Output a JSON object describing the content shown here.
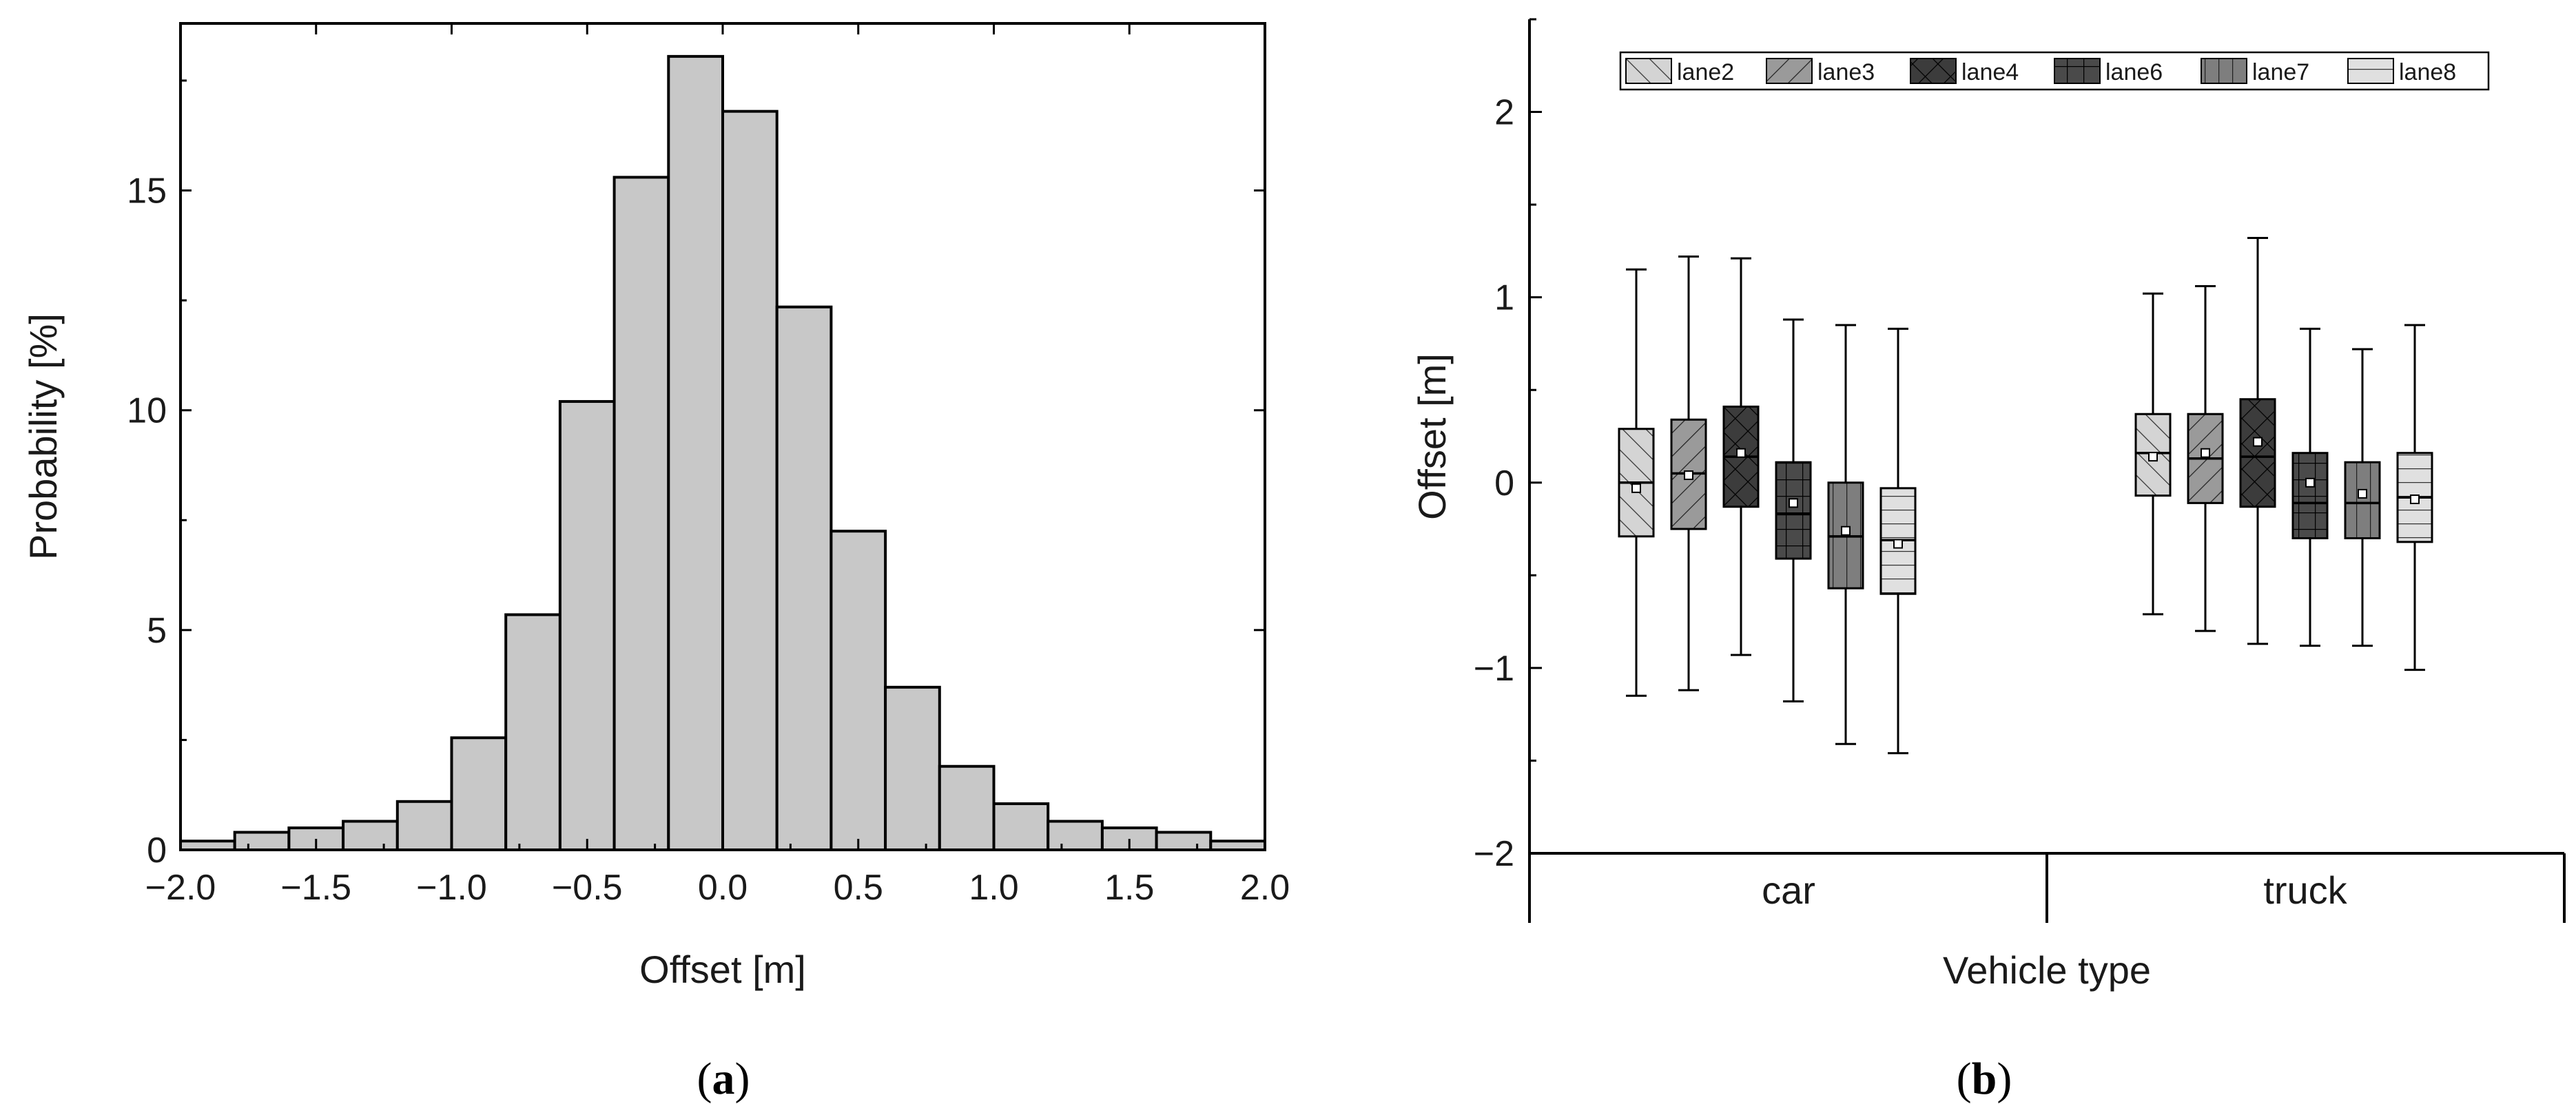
{
  "chart_data": [
    {
      "type": "bar",
      "subtype": "histogram",
      "caption_letter": "a",
      "xlabel": "Offset [m]",
      "ylabel": "Probability [%]",
      "xlim": [
        -2.0,
        2.0
      ],
      "ylim": [
        0,
        18.8
      ],
      "xticks": [
        -2.0,
        -1.5,
        -1.0,
        -0.5,
        0.0,
        0.5,
        1.0,
        1.5,
        2.0
      ],
      "xtick_labels": [
        "−2.0",
        "−1.5",
        "−1.0",
        "−0.5",
        "0.0",
        "0.5",
        "1.0",
        "1.5",
        "2.0"
      ],
      "yticks": [
        0,
        5,
        10,
        15
      ],
      "ytick_labels": [
        "0",
        "5",
        "10",
        "15"
      ],
      "bin_width": 0.2,
      "bin_starts": [
        -2.0,
        -1.8,
        -1.6,
        -1.4,
        -1.2,
        -1.0,
        -0.8,
        -0.6,
        -0.4,
        -0.2,
        0.0,
        0.2,
        0.4,
        0.6,
        0.8,
        1.0,
        1.2,
        1.4,
        1.6,
        1.8
      ],
      "values": [
        0.2,
        0.4,
        0.5,
        0.65,
        1.1,
        2.55,
        5.35,
        10.2,
        15.3,
        18.05,
        16.8,
        12.35,
        7.25,
        3.7,
        1.9,
        1.05,
        0.65,
        0.5,
        0.4,
        0.2
      ],
      "colors": {
        "bar_fill": "#c8c8c8",
        "bar_edge": "#000000"
      }
    },
    {
      "type": "box",
      "caption_letter": "b",
      "xlabel": "Vehicle type",
      "ylabel": "Offset [m]",
      "ylim": [
        -2.0,
        2.5
      ],
      "yticks": [
        -2,
        -1,
        0,
        1,
        2
      ],
      "ytick_labels": [
        "−2",
        "−1",
        "0",
        "1",
        "2"
      ],
      "categories": [
        "car",
        "truck"
      ],
      "legend": [
        "lane2",
        "lane3",
        "lane4",
        "lane6",
        "lane7",
        "lane8"
      ],
      "legend_position": "top",
      "series": [
        {
          "name": "lane2",
          "fill": "#d4d4d4",
          "pattern": "diag-right",
          "car": {
            "whisker_low": -1.15,
            "q1": -0.29,
            "median": 0.0,
            "mean": -0.03,
            "q3": 0.29,
            "whisker_high": 1.15
          },
          "truck": {
            "whisker_low": -0.71,
            "q1": -0.07,
            "median": 0.16,
            "mean": 0.14,
            "q3": 0.37,
            "whisker_high": 1.02
          }
        },
        {
          "name": "lane3",
          "fill": "#9a9a9a",
          "pattern": "diag-left",
          "car": {
            "whisker_low": -1.12,
            "q1": -0.25,
            "median": 0.05,
            "mean": 0.04,
            "q3": 0.34,
            "whisker_high": 1.22
          },
          "truck": {
            "whisker_low": -0.8,
            "q1": -0.11,
            "median": 0.13,
            "mean": 0.16,
            "q3": 0.37,
            "whisker_high": 1.06
          }
        },
        {
          "name": "lane4",
          "fill": "#3c3c3c",
          "pattern": "cross-diag",
          "car": {
            "whisker_low": -0.93,
            "q1": -0.13,
            "median": 0.14,
            "mean": 0.16,
            "q3": 0.41,
            "whisker_high": 1.21
          },
          "truck": {
            "whisker_low": -0.87,
            "q1": -0.13,
            "median": 0.14,
            "mean": 0.22,
            "q3": 0.45,
            "whisker_high": 1.32
          }
        },
        {
          "name": "lane6",
          "fill": "#4a4a4a",
          "pattern": "grid",
          "car": {
            "whisker_low": -1.18,
            "q1": -0.41,
            "median": -0.17,
            "mean": -0.11,
            "q3": 0.11,
            "whisker_high": 0.88
          },
          "truck": {
            "whisker_low": -0.88,
            "q1": -0.3,
            "median": -0.11,
            "mean": 0.0,
            "q3": 0.16,
            "whisker_high": 0.83
          }
        },
        {
          "name": "lane7",
          "fill": "#7e7e7e",
          "pattern": "vertical",
          "car": {
            "whisker_low": -1.41,
            "q1": -0.57,
            "median": -0.29,
            "mean": -0.26,
            "q3": 0.0,
            "whisker_high": 0.85
          },
          "truck": {
            "whisker_low": -0.88,
            "q1": -0.3,
            "median": -0.11,
            "mean": -0.06,
            "q3": 0.11,
            "whisker_high": 0.72
          }
        },
        {
          "name": "lane8",
          "fill": "#e0e0e0",
          "pattern": "horizontal",
          "car": {
            "whisker_low": -1.46,
            "q1": -0.6,
            "median": -0.31,
            "mean": -0.33,
            "q3": -0.03,
            "whisker_high": 0.83
          },
          "truck": {
            "whisker_low": -1.01,
            "q1": -0.32,
            "median": -0.08,
            "mean": -0.09,
            "q3": 0.16,
            "whisker_high": 0.85
          }
        }
      ]
    }
  ]
}
